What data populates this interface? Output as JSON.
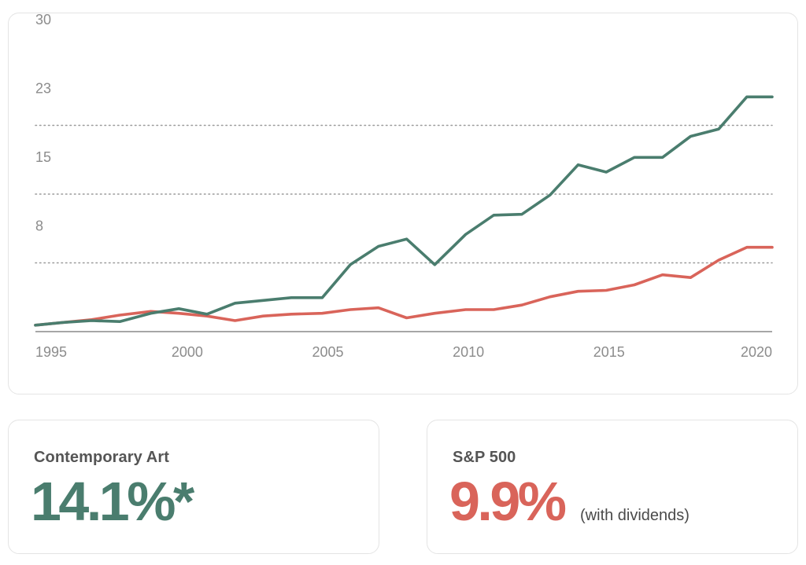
{
  "chart_data": {
    "type": "line",
    "title": "",
    "xlabel": "",
    "ylabel": "",
    "xlim": [
      1994.6,
      2020.8
    ],
    "ylim": [
      0,
      30
    ],
    "grid": "horizontal-dotted",
    "x_ticks": [
      {
        "value": 1995,
        "label": "1995"
      },
      {
        "value": 2000,
        "label": "2000"
      },
      {
        "value": 2005,
        "label": "2005"
      },
      {
        "value": 2010,
        "label": "2010"
      },
      {
        "value": 2015,
        "label": "2015"
      },
      {
        "value": 2020,
        "label": "2020"
      }
    ],
    "y_ticks": [
      {
        "value": 7.5,
        "label": "8"
      },
      {
        "value": 15,
        "label": "15"
      },
      {
        "value": 22.5,
        "label": "23"
      },
      {
        "value": 30,
        "label": "30"
      }
    ],
    "x": [
      1994.6,
      1995.6,
      1996.6,
      1997.6,
      1998.7,
      1999.7,
      2000.7,
      2001.7,
      2002.7,
      2003.7,
      2004.8,
      2005.8,
      2006.8,
      2007.8,
      2008.8,
      2009.9,
      2010.9,
      2011.9,
      2012.9,
      2013.9,
      2014.9,
      2015.9,
      2016.9,
      2017.9,
      2018.9,
      2019.9,
      2020.8
    ],
    "series": [
      {
        "name": "Contemporary Art",
        "color": "#4a7d6e",
        "values": [
          0.7,
          1.0,
          1.2,
          1.1,
          2.0,
          2.5,
          1.9,
          3.1,
          3.4,
          3.7,
          3.7,
          7.3,
          9.3,
          10.1,
          7.3,
          10.6,
          12.7,
          12.8,
          14.9,
          18.2,
          17.4,
          19.0,
          19.0,
          21.3,
          22.1,
          25.6,
          25.6
        ],
        "values_note": "approximate"
      },
      {
        "name": "S&P 500",
        "color": "#d9645a",
        "values": [
          0.7,
          1.0,
          1.3,
          1.8,
          2.2,
          2.0,
          1.7,
          1.2,
          1.7,
          1.9,
          2.0,
          2.4,
          2.6,
          1.5,
          2.0,
          2.4,
          2.4,
          2.9,
          3.8,
          4.4,
          4.5,
          5.1,
          6.2,
          5.9,
          7.8,
          9.2,
          9.2
        ],
        "values_note": "approximate"
      }
    ]
  },
  "stats": {
    "art": {
      "label": "Contemporary Art",
      "value": "14.1%*",
      "color": "#4a7d6e"
    },
    "sp": {
      "label": "S&P 500",
      "value": "9.9%",
      "note": "(with dividends)",
      "color": "#d9645a"
    }
  }
}
